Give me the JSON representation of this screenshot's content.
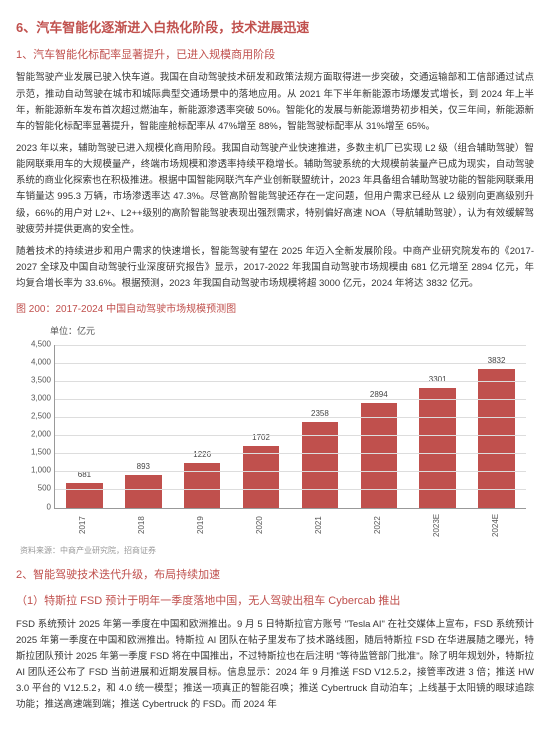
{
  "section_main_title": "6、汽车智能化逐渐进入白热化阶段，技术进展迅速",
  "sub_1_title": "1、汽车智能化标配率显著提升，已进入规模商用阶段",
  "para1": "智能驾驶产业发展已驶入快车道。我国在自动驾驶技术研发和政策法规方面取得进一步突破，交通运输部和工信部通过试点示范，推动自动驾驶在城市和城际典型交通场景中的落地应用。从 2021 年下半年新能源市场爆发式增长，到 2024 年上半年，新能源新车发布首次超过燃油车，新能源渗透率突破 50%。智能化的发展与新能源增势初步相关，仅三年间，新能源新车的智能化标配率显著提升，智能座舱标配率从 47%增至 88%，智能驾驶标配率从 31%增至 65%。",
  "para2": "2023 年以来，辅助驾驶已进入规模化商用阶段。我国自动驾驶产业快速推进，多数主机厂已实现 L2 级（组合辅助驾驶）智能网联乘用车的大规模量产，终端市场规模和渗透率持续平稳增长。辅助驾驶系统的大规模前装量产已成为现实，自动驾驶系统的商业化探索也在积极推进。根据中国智能网联汽车产业创新联盟统计，2023 年具备组合辅助驾驶功能的智能网联乘用车销量达 995.3 万辆，市场渗透率达 47.3%。尽管高阶智能驾驶还存在一定问题，但用户需求已经从 L2 级别向更高级别升级，66%的用户对 L2+、L2++级别的高阶智能驾驶表现出强烈需求，特别偏好高速 NOA（导航辅助驾驶），认为有效缓解驾驶疲劳并提供更高的安全性。",
  "para3": "随着技术的持续进步和用户需求的快速增长，智能驾驶有望在 2025 年迈入全新发展阶段。中商产业研究院发布的《2017-2027 全球及中国自动驾驶行业深度研究报告》显示，2017-2022 年我国自动驾驶市场规模由 681 亿元增至 2894 亿元，年均复合增长率为 33.6%。根据预测，2023 年我国自动驾驶市场规模将超 3000 亿元，2024 年将达 3832 亿元。",
  "fig_title": "图 200：2017-2024 中国自动驾驶市场规模预测图",
  "chart": {
    "unit": "单位：亿元",
    "ymax": 4500,
    "ystep": 500,
    "yticks": [
      0,
      500,
      1000,
      1500,
      2000,
      2500,
      3000,
      3500,
      4000,
      4500
    ],
    "categories": [
      "2017",
      "2018",
      "2019",
      "2020",
      "2021",
      "2022",
      "2023E",
      "2024E"
    ],
    "values": [
      681,
      893,
      1226,
      1702,
      2358,
      2894,
      3301,
      3832
    ],
    "bar_color": "#c0504d",
    "grid_color": "#ddd",
    "axis_color": "#999"
  },
  "source": "资料来源：中商产业研究院，招商证券",
  "sub_2_title": "2、智能驾驶技术迭代升级，布局持续加速",
  "sub_2_1_title": "（1）特斯拉 FSD 预计于明年一季度落地中国，无人驾驶出租车 Cybercab 推出",
  "para4": "FSD 系统预计 2025 年第一季度在中国和欧洲推出。9 月 5 日特斯拉官方账号 \"Tesla AI\" 在社交媒体上宣布，FSD 系统预计 2025 年第一季度在中国和欧洲推出。特斯拉 AI 团队在帖子里发布了技术路线图，随后特斯拉 FSD 在华进展随之曝光，特斯拉团队预计 2025 年第一季度 FSD 将在中国推出，不过特斯拉也在后注明 \"等待监管部门批准\"。除了明年规划外，特斯拉 AI 团队还公布了 FSD 当前进展和近期发展目标。信息显示：2024 年 9 月推送 FSD V12.5.2，接管率改进 3 倍；推送 HW 3.0 平台的 V12.5.2，和 4.0 统一模型；推送一项真正的智能召唤；推送 Cybertruck 自动泊车；上线基于太阳镜的眼球追踪功能；推送高速端到端；推送 Cybertruck 的 FSD。而 2024 年"
}
